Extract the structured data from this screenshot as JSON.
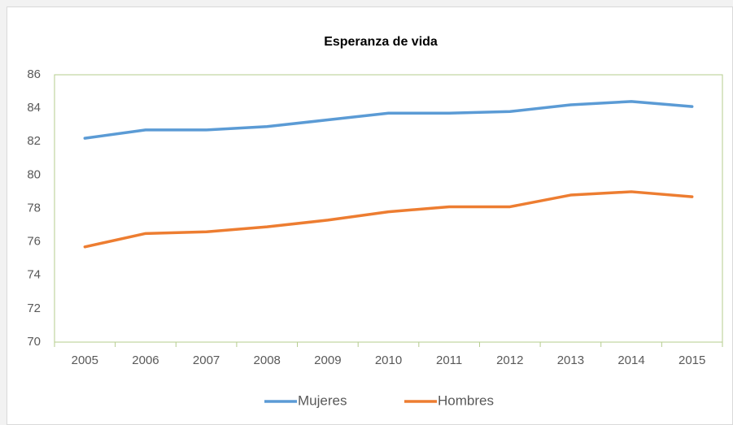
{
  "chart_data": {
    "type": "line",
    "title": "Esperanza de vida",
    "categories": [
      "2005",
      "2006",
      "2007",
      "2008",
      "2009",
      "2010",
      "2011",
      "2012",
      "2013",
      "2014",
      "2015"
    ],
    "series": [
      {
        "name": "Mujeres",
        "color": "#5b9bd5",
        "values": [
          82.2,
          82.7,
          82.7,
          82.9,
          83.3,
          83.7,
          83.7,
          83.8,
          84.2,
          84.4,
          84.1
        ]
      },
      {
        "name": "Hombres",
        "color": "#ed7d31",
        "values": [
          75.7,
          76.5,
          76.6,
          76.9,
          77.3,
          77.8,
          78.1,
          78.1,
          78.8,
          79.0,
          78.7
        ]
      }
    ],
    "ylim": [
      70,
      86
    ],
    "yticks": [
      70,
      72,
      74,
      76,
      78,
      80,
      82,
      84,
      86
    ],
    "grid": false,
    "legend": "bottom"
  }
}
